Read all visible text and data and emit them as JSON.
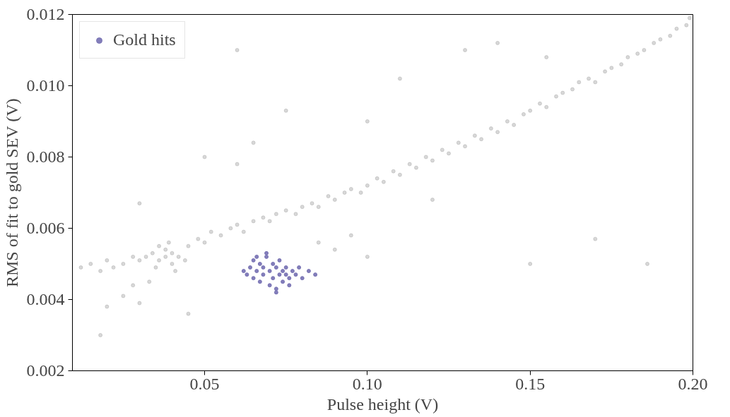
{
  "chart_data": {
    "type": "scatter",
    "xlabel": "Pulse height (V)",
    "ylabel": "RMS of fit to gold SEV (V)",
    "xlim": [
      0.0094,
      0.2
    ],
    "ylim": [
      0.002,
      0.012
    ],
    "xticks": [
      0.05,
      {
        "value": 0.1,
        "label": "0.10"
      },
      0.15,
      {
        "value": 0.2,
        "label": "0.20"
      }
    ],
    "yticks": [
      0.002,
      0.004,
      0.006,
      0.008,
      {
        "value": 0.01,
        "label": "0.010"
      },
      0.012
    ],
    "grid": false,
    "legend": "top left",
    "marker": "circle",
    "series": [
      {
        "color": "#a9a9a9",
        "x": [
          0.012,
          0.015,
          0.018,
          0.02,
          0.022,
          0.025,
          0.028,
          0.03,
          0.045,
          0.048,
          0.05,
          0.052,
          0.055,
          0.058,
          0.06,
          0.062,
          0.065,
          0.068,
          0.07,
          0.072,
          0.075,
          0.078,
          0.08,
          0.083,
          0.085,
          0.088,
          0.09,
          0.093,
          0.095,
          0.098,
          0.1,
          0.103,
          0.105,
          0.108,
          0.11,
          0.113,
          0.115,
          0.118,
          0.12,
          0.123,
          0.125,
          0.128,
          0.13,
          0.133,
          0.135,
          0.138,
          0.14,
          0.143,
          0.145,
          0.148,
          0.15,
          0.153,
          0.155,
          0.158,
          0.16,
          0.163,
          0.165,
          0.168,
          0.17,
          0.173,
          0.175,
          0.178,
          0.18,
          0.183,
          0.185,
          0.188,
          0.19,
          0.193,
          0.195,
          0.198,
          0.199,
          0.032,
          0.034,
          0.036,
          0.038,
          0.038,
          0.04,
          0.04,
          0.042,
          0.044,
          0.036,
          0.035,
          0.039,
          0.041,
          0.02,
          0.025,
          0.03,
          0.018,
          0.028,
          0.033,
          0.03,
          0.05,
          0.06,
          0.065,
          0.085,
          0.09,
          0.1,
          0.095,
          0.12,
          0.11,
          0.13,
          0.14,
          0.155,
          0.17,
          0.15,
          0.186,
          0.06,
          0.075,
          0.1,
          0.045
        ],
        "values": [
          0.0049,
          0.005,
          0.0048,
          0.0051,
          0.0049,
          0.005,
          0.0052,
          0.0051,
          0.0055,
          0.0057,
          0.0056,
          0.0059,
          0.0058,
          0.006,
          0.0061,
          0.0059,
          0.0062,
          0.0063,
          0.0062,
          0.0064,
          0.0065,
          0.0064,
          0.0066,
          0.0067,
          0.0066,
          0.0069,
          0.0068,
          0.007,
          0.0071,
          0.007,
          0.0072,
          0.0074,
          0.0073,
          0.0076,
          0.0075,
          0.0078,
          0.0077,
          0.008,
          0.0079,
          0.0082,
          0.0081,
          0.0084,
          0.0083,
          0.0086,
          0.0085,
          0.0088,
          0.0087,
          0.009,
          0.0089,
          0.0092,
          0.0093,
          0.0095,
          0.0094,
          0.0097,
          0.0098,
          0.0099,
          0.0101,
          0.0102,
          0.0101,
          0.0104,
          0.0105,
          0.0106,
          0.0108,
          0.0109,
          0.011,
          0.0112,
          0.0113,
          0.0114,
          0.0116,
          0.0117,
          0.0119,
          0.0052,
          0.0053,
          0.0051,
          0.0052,
          0.0054,
          0.005,
          0.0053,
          0.0052,
          0.0051,
          0.0055,
          0.0049,
          0.0056,
          0.0048,
          0.0038,
          0.0041,
          0.0039,
          0.003,
          0.0044,
          0.0045,
          0.0067,
          0.008,
          0.0078,
          0.0084,
          0.0056,
          0.0054,
          0.0052,
          0.0058,
          0.0068,
          0.0102,
          0.011,
          0.0112,
          0.0108,
          0.0057,
          0.005,
          0.005,
          0.011,
          0.0093,
          0.009,
          0.0036
        ]
      },
      {
        "name": "Gold hits",
        "color": "#7570b3",
        "x": [
          0.062,
          0.063,
          0.064,
          0.065,
          0.065,
          0.066,
          0.067,
          0.067,
          0.068,
          0.068,
          0.069,
          0.07,
          0.07,
          0.071,
          0.071,
          0.072,
          0.072,
          0.073,
          0.073,
          0.074,
          0.074,
          0.075,
          0.075,
          0.076,
          0.077,
          0.078,
          0.079,
          0.08,
          0.082,
          0.084,
          0.069,
          0.072,
          0.076,
          0.066
        ],
        "values": [
          0.0048,
          0.0047,
          0.0049,
          0.0051,
          0.0046,
          0.0048,
          0.005,
          0.0045,
          0.0049,
          0.0047,
          0.0052,
          0.0048,
          0.0044,
          0.005,
          0.0046,
          0.0049,
          0.0043,
          0.0047,
          0.0051,
          0.0048,
          0.0045,
          0.0049,
          0.0047,
          0.0046,
          0.0048,
          0.0047,
          0.0049,
          0.0046,
          0.0048,
          0.0047,
          0.0053,
          0.0042,
          0.0044,
          0.0052
        ]
      }
    ]
  }
}
